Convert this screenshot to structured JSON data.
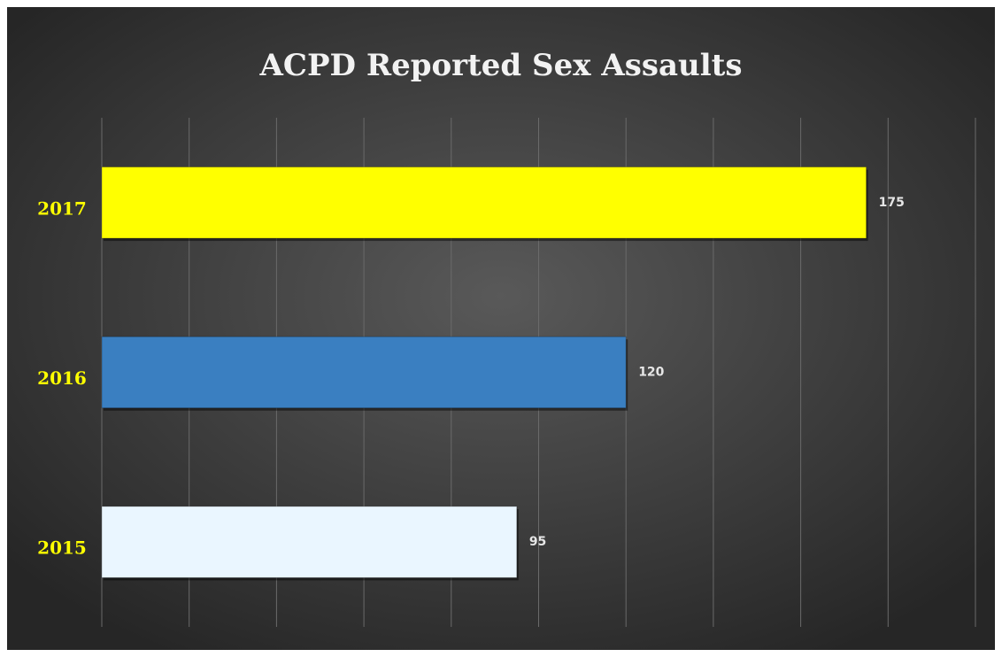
{
  "chart_data": {
    "type": "bar",
    "orientation": "horizontal",
    "title": "ACPD Reported Sex Assaults",
    "categories": [
      "2015",
      "2016",
      "2017"
    ],
    "values": [
      95,
      120,
      175
    ],
    "colors": [
      "#eaf6ff",
      "#3a7fc1",
      "#ffff00"
    ],
    "xlim": [
      0,
      200
    ],
    "xticks": [
      0,
      20,
      40,
      60,
      80,
      100,
      120,
      140,
      160,
      180,
      200
    ],
    "grid": true
  }
}
